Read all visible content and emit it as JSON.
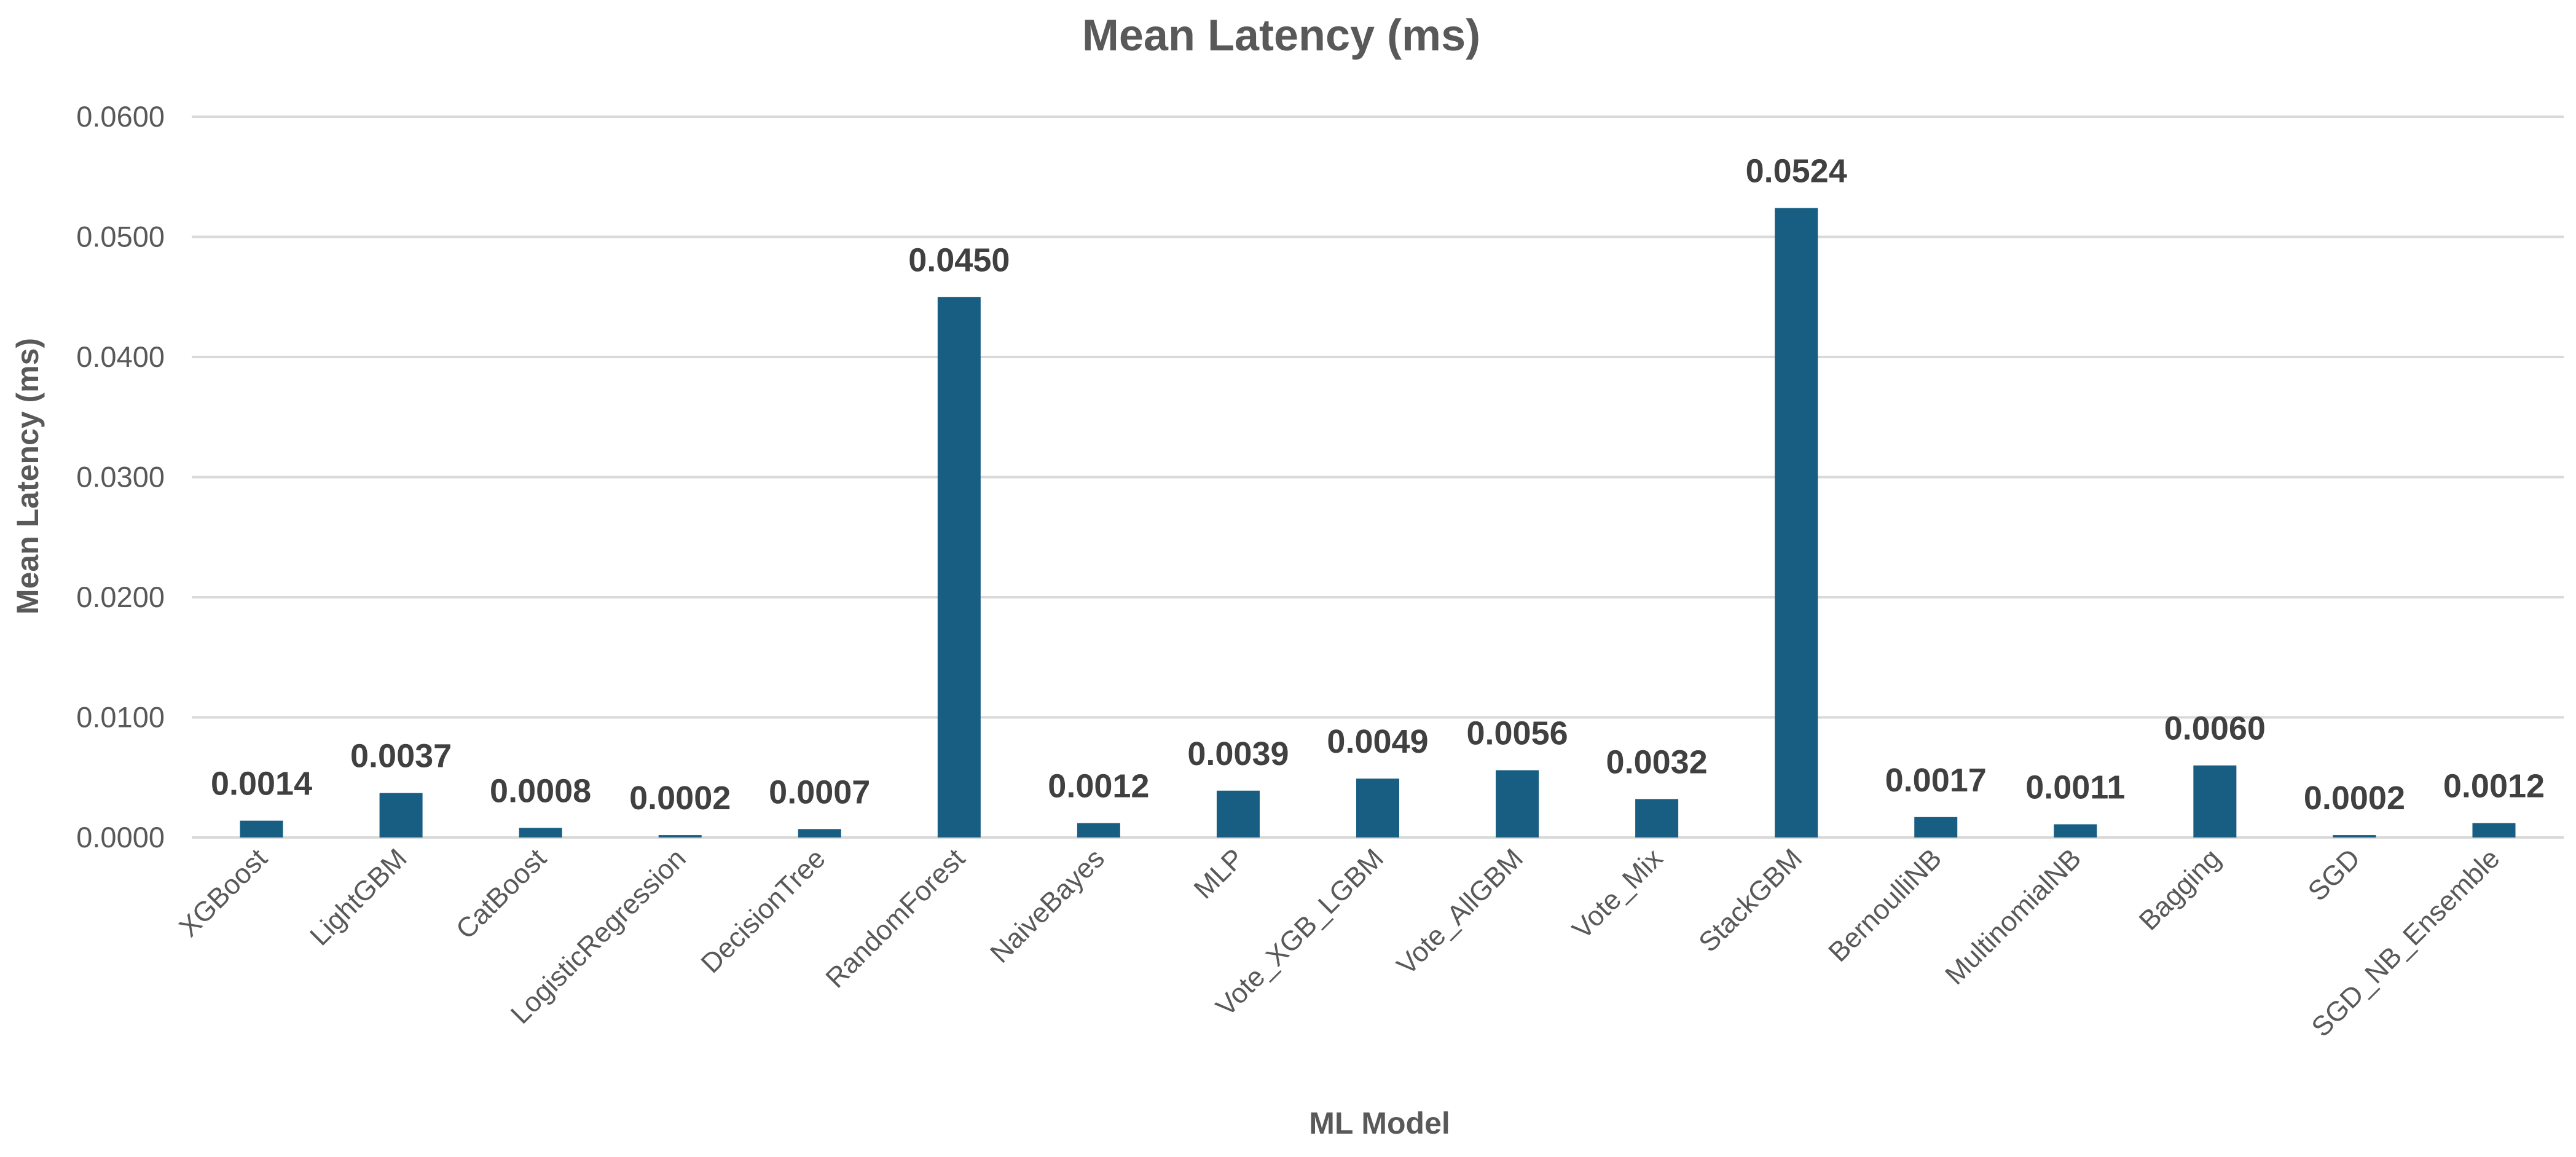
{
  "chart_data": {
    "type": "bar",
    "title": "Mean Latency (ms)",
    "xlabel": "ML Model",
    "ylabel": "Mean Latency (ms)",
    "ylim": [
      0,
      0.06
    ],
    "y_ticks": [
      "0.0000",
      "0.0100",
      "0.0200",
      "0.0300",
      "0.0400",
      "0.0500",
      "0.0600"
    ],
    "y_tick_values": [
      0,
      0.01,
      0.02,
      0.03,
      0.04,
      0.05,
      0.06
    ],
    "grid": true,
    "legend": "none",
    "bar_color": "#175E82",
    "categories": [
      "XGBoost",
      "LightGBM",
      "CatBoost",
      "LogisticRegression",
      "DecisionTree",
      "RandomForest",
      "NaiveBayes",
      "MLP",
      "Vote_XGB_LGBM",
      "Vote_AllGBM",
      "Vote_Mix",
      "StackGBM",
      "BernoulliNB",
      "MultinomialNB",
      "Bagging",
      "SGD",
      "SGD_NB_Ensemble"
    ],
    "values": [
      0.0014,
      0.0037,
      0.0008,
      0.0002,
      0.0007,
      0.045,
      0.0012,
      0.0039,
      0.0049,
      0.0056,
      0.0032,
      0.0524,
      0.0017,
      0.0011,
      0.006,
      0.0002,
      0.0012
    ],
    "data_labels": [
      "0.0014",
      "0.0037",
      "0.0008",
      "0.0002",
      "0.0007",
      "0.0450",
      "0.0012",
      "0.0039",
      "0.0049",
      "0.0056",
      "0.0032",
      "0.0524",
      "0.0017",
      "0.0011",
      "0.0060",
      "0.0002",
      "0.0012"
    ]
  }
}
